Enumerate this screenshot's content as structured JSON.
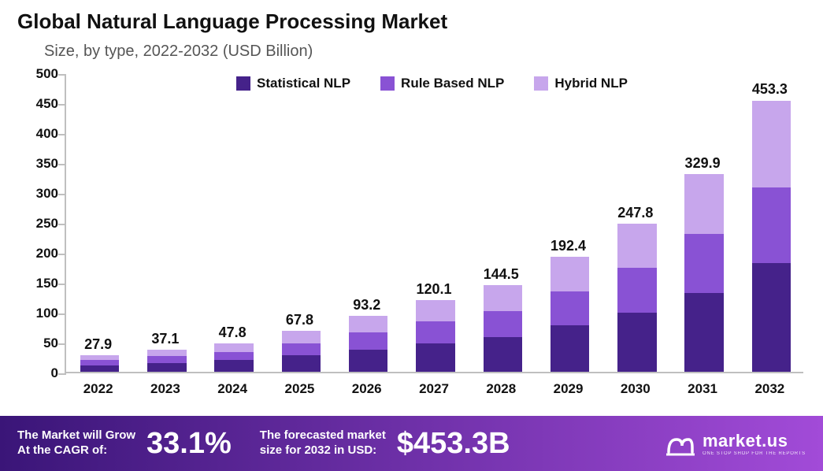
{
  "title": "Global Natural Language Processing Market",
  "subtitle": "Size, by type, 2022-2032 (USD Billion)",
  "chart": {
    "type": "stacked-bar",
    "ylim": [
      0,
      500
    ],
    "ytick_step": 50,
    "axis_color": "#bfbfbf",
    "background_color": "#ffffff",
    "title_fontsize": 26,
    "subtitle_fontsize": 20,
    "axis_label_fontsize": 17,
    "bar_label_fontsize": 18,
    "bar_width_ratio": 0.58,
    "series": [
      {
        "name": "Statistical NLP",
        "color": "#45228a"
      },
      {
        "name": "Rule Based NLP",
        "color": "#8952d4"
      },
      {
        "name": "Hybrid NLP",
        "color": "#c7a6ec"
      }
    ],
    "categories": [
      "2022",
      "2023",
      "2024",
      "2025",
      "2026",
      "2027",
      "2028",
      "2029",
      "2030",
      "2031",
      "2032"
    ],
    "totals": [
      27.9,
      37.1,
      47.8,
      67.8,
      93.2,
      120.1,
      144.5,
      192.4,
      247.8,
      329.9,
      453.3
    ],
    "stacks": {
      "Statistical NLP": [
        11.2,
        14.8,
        19.1,
        27.1,
        37.3,
        48.0,
        57.8,
        77.0,
        99.1,
        131.9,
        181.3
      ],
      "Rule Based NLP": [
        8.4,
        11.1,
        14.4,
        20.3,
        28.0,
        36.0,
        43.4,
        57.7,
        74.4,
        99.0,
        126.0
      ],
      "Hybrid NLP": [
        8.3,
        11.2,
        14.3,
        20.4,
        27.9,
        36.1,
        43.3,
        57.7,
        74.3,
        99.0,
        146.0
      ]
    }
  },
  "footer": {
    "gradient_from": "#3a1578",
    "gradient_to": "#a24bd8",
    "cagr_label_line1": "The Market will Grow",
    "cagr_label_line2": "At the CAGR of:",
    "cagr_value": "33.1%",
    "forecast_label_line1": "The forecasted market",
    "forecast_label_line2": "size for 2032 in USD:",
    "forecast_value": "$453.3B",
    "brand_name": "market.us",
    "brand_tagline": "ONE STOP SHOP FOR THE REPORTS",
    "text_color": "#ffffff"
  }
}
